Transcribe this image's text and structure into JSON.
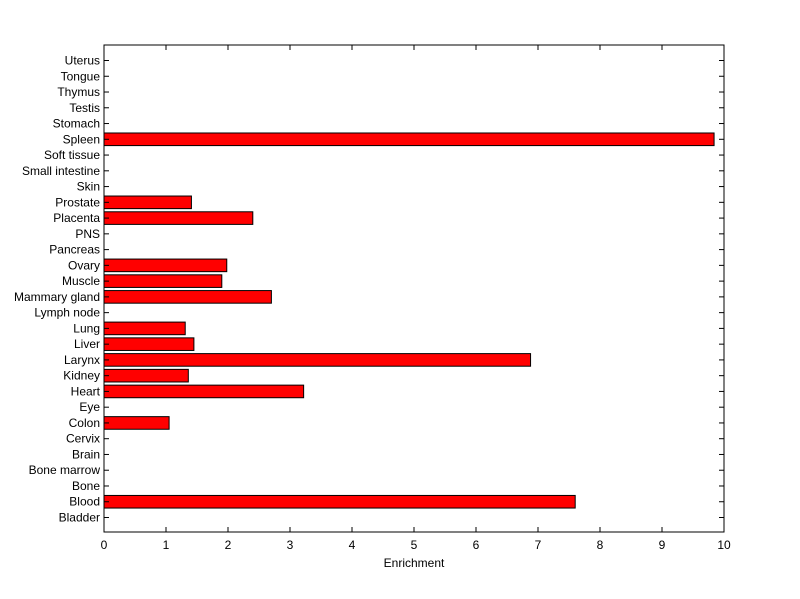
{
  "chart_data": {
    "type": "bar",
    "orientation": "horizontal",
    "title": "",
    "xlabel": "Enrichment",
    "ylabel": "",
    "xlim": [
      0,
      10
    ],
    "xticks": [
      "0",
      "1",
      "2",
      "3",
      "4",
      "5",
      "6",
      "7",
      "8",
      "9",
      "10"
    ],
    "grid": false,
    "bar_color": "#ff0000",
    "categories": [
      "Bladder",
      "Blood",
      "Bone",
      "Bone marrow",
      "Brain",
      "Cervix",
      "Colon",
      "Eye",
      "Heart",
      "Kidney",
      "Larynx",
      "Liver",
      "Lung",
      "Lymph node",
      "Mammary gland",
      "Muscle",
      "Ovary",
      "Pancreas",
      "PNS",
      "Placenta",
      "Prostate",
      "Skin",
      "Small intestine",
      "Soft tissue",
      "Spleen",
      "Stomach",
      "Testis",
      "Thymus",
      "Tongue",
      "Uterus"
    ],
    "values": [
      0,
      7.6,
      0,
      0,
      0,
      0,
      1.05,
      0,
      3.22,
      1.36,
      6.88,
      1.45,
      1.31,
      0,
      2.7,
      1.9,
      1.98,
      0,
      0,
      2.4,
      1.41,
      0,
      0,
      0,
      9.84,
      0,
      0,
      0,
      0,
      0
    ]
  }
}
